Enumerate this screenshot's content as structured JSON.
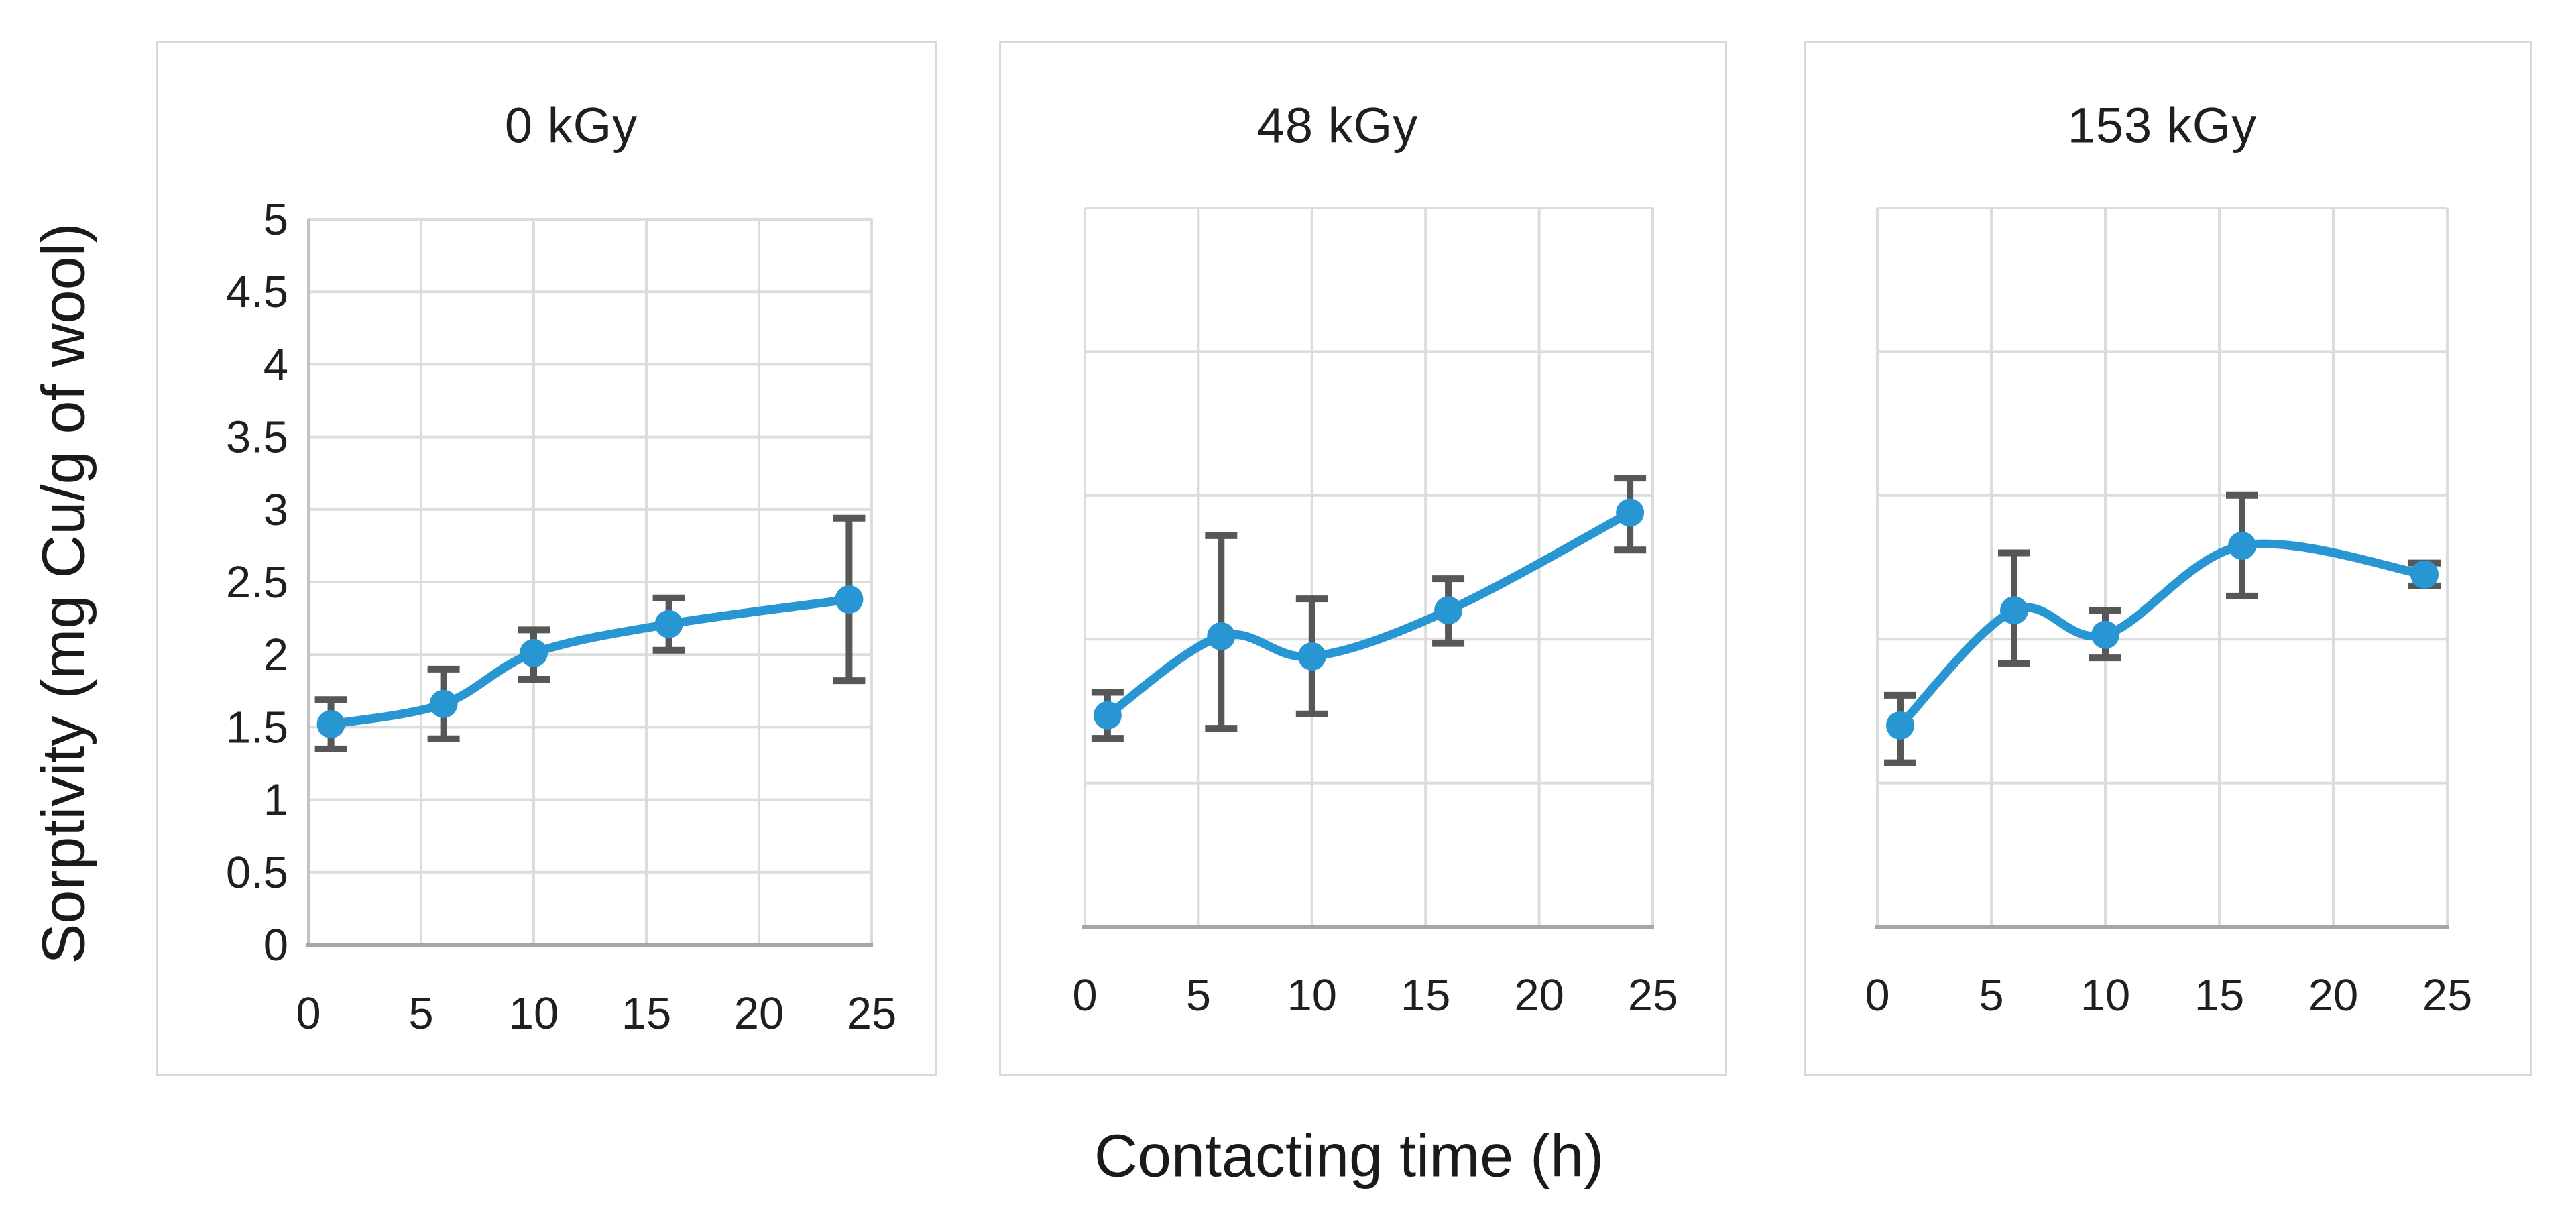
{
  "figure": {
    "y_axis_title": "Sorptivity (mg Cu/g of wool)",
    "x_axis_title": "Contacting time (h)"
  },
  "colors": {
    "series_blue": "#2996d4",
    "error_bar_gray": "#575757",
    "gridline_gray": "#dcdcdc",
    "bottom_axis_gray": "#a6a6a6",
    "left_axis_gray": "#c2c2c2",
    "panel_border_gray": "#d9d9d9",
    "text_color": "#1f1f1f",
    "background": "#ffffff"
  },
  "chart_data": [
    {
      "type": "line",
      "title": "0 kGy",
      "xlabel": "Contacting time (h)",
      "ylabel": "Sorptivity (mg Cu/g of wool)",
      "x": [
        1,
        6,
        10,
        16,
        24
      ],
      "y": [
        1.52,
        1.66,
        2.01,
        2.21,
        2.38
      ],
      "error_low": [
        1.35,
        1.42,
        1.83,
        2.03,
        1.82
      ],
      "error_high": [
        1.69,
        1.9,
        2.17,
        2.39,
        2.94
      ],
      "x_ticks": [
        0,
        5,
        10,
        15,
        20,
        25
      ],
      "y_ticks": [
        0,
        0.5,
        1,
        1.5,
        2,
        2.5,
        3,
        3.5,
        4,
        4.5,
        5
      ],
      "show_y_tick_labels": true,
      "xlim": [
        0,
        25
      ],
      "ylim": [
        0,
        5
      ],
      "grid": true,
      "smooth": true,
      "marker": "circle",
      "legend": "none"
    },
    {
      "type": "line",
      "title": "48 kGy",
      "xlabel": "Contacting time (h)",
      "ylabel": "",
      "x": [
        1,
        6,
        10,
        16,
        24
      ],
      "y": [
        1.47,
        2.02,
        1.88,
        2.2,
        2.88
      ],
      "error_low": [
        1.31,
        1.38,
        1.48,
        1.97,
        2.62
      ],
      "error_high": [
        1.63,
        2.72,
        2.28,
        2.42,
        3.12
      ],
      "x_ticks": [
        0,
        5,
        10,
        15,
        20,
        25
      ],
      "y_ticks": [
        0,
        1,
        2,
        3,
        4,
        5
      ],
      "show_y_tick_labels": false,
      "xlim": [
        0,
        25
      ],
      "ylim": [
        0,
        5
      ],
      "grid": true,
      "smooth": true,
      "marker": "circle",
      "legend": "none"
    },
    {
      "type": "line",
      "title": "153 kGy",
      "xlabel": "Contacting time (h)",
      "ylabel": "",
      "x": [
        1,
        6,
        10,
        16,
        24
      ],
      "y": [
        1.4,
        2.2,
        2.03,
        2.65,
        2.45
      ],
      "error_low": [
        1.14,
        1.83,
        1.87,
        2.3,
        2.37
      ],
      "error_high": [
        1.61,
        2.6,
        2.2,
        3.0,
        2.53
      ],
      "x_ticks": [
        0,
        5,
        10,
        15,
        20,
        25
      ],
      "y_ticks": [
        0,
        1,
        2,
        3,
        4,
        5
      ],
      "show_y_tick_labels": false,
      "xlim": [
        0,
        25
      ],
      "ylim": [
        0,
        5
      ],
      "grid": true,
      "smooth": true,
      "marker": "circle",
      "legend": "none"
    }
  ]
}
